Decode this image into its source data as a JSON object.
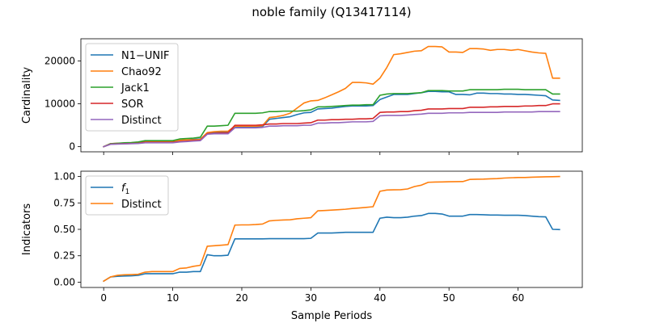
{
  "figure": {
    "title": "noble family (Q13417114)",
    "xlabel": "Sample Periods"
  },
  "chart_data": [
    {
      "type": "line",
      "ylabel": "Cardinality",
      "xlim": [
        -3.3,
        69.3
      ],
      "ylim": [
        -1200,
        25200
      ],
      "xticks": [
        0,
        10,
        20,
        30,
        40,
        50,
        60
      ],
      "yticks": [
        0,
        10000,
        20000
      ],
      "ytick_labels": [
        "0",
        "10000",
        "20000"
      ],
      "show_xtick_labels": false,
      "legend": "upper left",
      "x": [
        0,
        1,
        2,
        3,
        4,
        5,
        6,
        7,
        8,
        9,
        10,
        11,
        12,
        13,
        14,
        15,
        16,
        17,
        18,
        19,
        20,
        21,
        22,
        23,
        24,
        25,
        26,
        27,
        28,
        29,
        30,
        31,
        32,
        33,
        34,
        35,
        36,
        37,
        38,
        39,
        40,
        41,
        42,
        43,
        44,
        45,
        46,
        47,
        48,
        49,
        50,
        51,
        52,
        53,
        54,
        55,
        56,
        57,
        58,
        59,
        60,
        61,
        62,
        63,
        64,
        65,
        66
      ],
      "series": [
        {
          "name": "N1−UNIF",
          "color": "#1f77b4",
          "values": [
            0,
            600,
            700,
            750,
            800,
            900,
            1200,
            1250,
            1250,
            1250,
            1250,
            1500,
            1600,
            1700,
            1800,
            3200,
            3300,
            3400,
            3400,
            4600,
            4600,
            4600,
            4600,
            4700,
            6400,
            6600,
            6800,
            7000,
            7500,
            7900,
            8000,
            8800,
            8900,
            9000,
            9200,
            9400,
            9500,
            9500,
            9500,
            9600,
            11000,
            11600,
            12200,
            12200,
            12200,
            12400,
            12600,
            12900,
            12900,
            12800,
            12800,
            12200,
            12200,
            12100,
            12500,
            12500,
            12400,
            12400,
            12300,
            12300,
            12200,
            12200,
            12100,
            12000,
            11900,
            10900,
            10800
          ]
        },
        {
          "name": "Chao92",
          "color": "#ff7f0e",
          "values": [
            0,
            700,
            800,
            850,
            900,
            1000,
            1300,
            1300,
            1300,
            1300,
            1300,
            1500,
            1600,
            1600,
            1700,
            3300,
            3500,
            3600,
            3600,
            4800,
            4800,
            4800,
            4800,
            4900,
            6800,
            7000,
            7300,
            7800,
            9000,
            10200,
            10700,
            10800,
            11400,
            12100,
            12800,
            13600,
            15000,
            15000,
            14900,
            14600,
            16000,
            18500,
            21500,
            21700,
            22000,
            22300,
            22400,
            23400,
            23400,
            23300,
            22100,
            22100,
            22000,
            22900,
            22900,
            22800,
            22500,
            22700,
            22700,
            22500,
            22700,
            22400,
            22100,
            21900,
            21800,
            16000,
            16000
          ]
        },
        {
          "name": "Jack1",
          "color": "#2ca02c",
          "values": [
            0,
            700,
            800,
            900,
            950,
            1100,
            1400,
            1400,
            1400,
            1400,
            1400,
            1800,
            1900,
            2000,
            2200,
            4800,
            4800,
            4900,
            5000,
            7800,
            7800,
            7800,
            7800,
            7900,
            8200,
            8200,
            8300,
            8300,
            8300,
            8400,
            8600,
            9300,
            9300,
            9400,
            9500,
            9600,
            9700,
            9700,
            9800,
            9800,
            12000,
            12300,
            12400,
            12400,
            12400,
            12500,
            12600,
            13100,
            13100,
            13100,
            13000,
            13000,
            13000,
            13300,
            13300,
            13300,
            13300,
            13300,
            13400,
            13400,
            13400,
            13300,
            13300,
            13300,
            13300,
            12300,
            12300
          ]
        },
        {
          "name": "SOR",
          "color": "#d62728",
          "values": [
            0,
            600,
            650,
            700,
            750,
            800,
            1000,
            1000,
            1000,
            1000,
            1000,
            1200,
            1300,
            1400,
            1500,
            3000,
            3100,
            3200,
            3200,
            5000,
            5000,
            5000,
            5000,
            5100,
            5300,
            5300,
            5400,
            5400,
            5400,
            5500,
            5600,
            6200,
            6200,
            6300,
            6300,
            6400,
            6400,
            6500,
            6500,
            6600,
            8000,
            8100,
            8100,
            8200,
            8200,
            8400,
            8500,
            8800,
            8800,
            8800,
            8900,
            8900,
            8900,
            9200,
            9200,
            9200,
            9300,
            9300,
            9400,
            9400,
            9400,
            9500,
            9500,
            9600,
            9600,
            10000,
            10000
          ]
        },
        {
          "name": "Distinct",
          "color": "#9467bd",
          "values": [
            0,
            550,
            600,
            650,
            700,
            750,
            900,
            900,
            900,
            900,
            900,
            1100,
            1200,
            1300,
            1400,
            2900,
            3000,
            3000,
            3000,
            4400,
            4400,
            4400,
            4400,
            4500,
            4800,
            4800,
            4900,
            4900,
            4900,
            5000,
            5000,
            5500,
            5500,
            5600,
            5600,
            5700,
            5800,
            5800,
            5800,
            5900,
            7200,
            7300,
            7300,
            7300,
            7400,
            7500,
            7600,
            7800,
            7800,
            7800,
            7900,
            7900,
            7900,
            8000,
            8000,
            8000,
            8000,
            8000,
            8100,
            8100,
            8100,
            8100,
            8100,
            8200,
            8200,
            8200,
            8200
          ]
        }
      ]
    },
    {
      "type": "line",
      "ylabel": "Indicators",
      "xlim": [
        -3.3,
        69.3
      ],
      "ylim": [
        -0.05,
        1.05
      ],
      "xticks": [
        0,
        10,
        20,
        30,
        40,
        50,
        60
      ],
      "yticks": [
        0,
        0.25,
        0.5,
        0.75,
        1.0
      ],
      "ytick_labels": [
        "0.00",
        "0.25",
        "0.50",
        "0.75",
        "1.00"
      ],
      "show_xtick_labels": true,
      "legend": "upper left",
      "x": [
        0,
        1,
        2,
        3,
        4,
        5,
        6,
        7,
        8,
        9,
        10,
        11,
        12,
        13,
        14,
        15,
        16,
        17,
        18,
        19,
        20,
        21,
        22,
        23,
        24,
        25,
        26,
        27,
        28,
        29,
        30,
        31,
        32,
        33,
        34,
        35,
        36,
        37,
        38,
        39,
        40,
        41,
        42,
        43,
        44,
        45,
        46,
        47,
        48,
        49,
        50,
        51,
        52,
        53,
        54,
        55,
        56,
        57,
        58,
        59,
        60,
        61,
        62,
        63,
        64,
        65,
        66
      ],
      "series": [
        {
          "name": "f1",
          "legend_main": "f",
          "legend_sub": "1",
          "color": "#1f77b4",
          "values": [
            0.01,
            0.05,
            0.055,
            0.058,
            0.06,
            0.065,
            0.08,
            0.08,
            0.08,
            0.08,
            0.08,
            0.095,
            0.095,
            0.1,
            0.1,
            0.26,
            0.25,
            0.25,
            0.255,
            0.41,
            0.41,
            0.41,
            0.41,
            0.41,
            0.412,
            0.412,
            0.412,
            0.412,
            0.412,
            0.412,
            0.415,
            0.465,
            0.465,
            0.465,
            0.468,
            0.472,
            0.472,
            0.472,
            0.472,
            0.472,
            0.605,
            0.615,
            0.61,
            0.61,
            0.615,
            0.625,
            0.63,
            0.65,
            0.65,
            0.645,
            0.625,
            0.625,
            0.625,
            0.64,
            0.64,
            0.638,
            0.635,
            0.635,
            0.633,
            0.633,
            0.633,
            0.63,
            0.625,
            0.62,
            0.618,
            0.5,
            0.498
          ]
        },
        {
          "name": "Distinct",
          "legend_main": "Distinct",
          "legend_sub": "",
          "color": "#ff7f0e",
          "values": [
            0.01,
            0.05,
            0.065,
            0.07,
            0.072,
            0.075,
            0.095,
            0.1,
            0.1,
            0.1,
            0.1,
            0.13,
            0.135,
            0.15,
            0.16,
            0.34,
            0.345,
            0.35,
            0.355,
            0.54,
            0.542,
            0.542,
            0.545,
            0.55,
            0.58,
            0.585,
            0.588,
            0.59,
            0.6,
            0.605,
            0.61,
            0.675,
            0.678,
            0.682,
            0.686,
            0.69,
            0.697,
            0.702,
            0.708,
            0.714,
            0.86,
            0.872,
            0.874,
            0.875,
            0.882,
            0.905,
            0.918,
            0.945,
            0.947,
            0.948,
            0.95,
            0.951,
            0.952,
            0.972,
            0.974,
            0.975,
            0.978,
            0.98,
            0.985,
            0.988,
            0.99,
            0.99,
            0.993,
            0.995,
            0.997,
            0.998,
            1.0
          ]
        }
      ]
    }
  ]
}
